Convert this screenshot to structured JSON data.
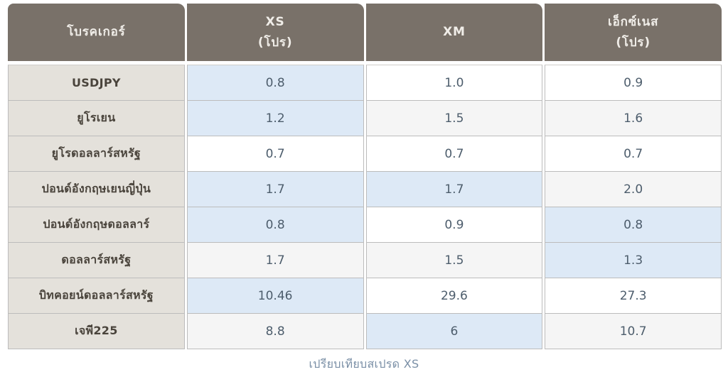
{
  "table": {
    "headers": [
      {
        "lines": [
          "โบรคเกอร์"
        ]
      },
      {
        "lines": [
          "XS",
          "(โปร)"
        ]
      },
      {
        "lines": [
          "XM"
        ]
      },
      {
        "lines": [
          "เอ็กซ์เนส",
          "(โปร)"
        ]
      }
    ],
    "rows": [
      {
        "label": "USDJPY",
        "values": [
          "0.8",
          "1.0",
          "0.9"
        ],
        "cell_bg": [
          "blue",
          "white",
          "white"
        ]
      },
      {
        "label": "ยูโรเยน",
        "values": [
          "1.2",
          "1.5",
          "1.6"
        ],
        "cell_bg": [
          "blue",
          "stripe",
          "stripe"
        ]
      },
      {
        "label": "ยูโรดอลลาร์สหรัฐ",
        "values": [
          "0.7",
          "0.7",
          "0.7"
        ],
        "cell_bg": [
          "white",
          "white",
          "white"
        ]
      },
      {
        "label": "ปอนด์อังกฤษเยนญี่ปุ่น",
        "values": [
          "1.7",
          "1.7",
          "2.0"
        ],
        "cell_bg": [
          "blue",
          "blue",
          "stripe"
        ]
      },
      {
        "label": "ปอนด์อังกฤษดอลลาร์",
        "values": [
          "0.8",
          "0.9",
          "0.8"
        ],
        "cell_bg": [
          "blue",
          "white",
          "blue"
        ]
      },
      {
        "label": "ดอลลาร์สหรัฐ",
        "values": [
          "1.7",
          "1.5",
          "1.3"
        ],
        "cell_bg": [
          "stripe",
          "stripe",
          "blue"
        ]
      },
      {
        "label": "บิทคอยน์ดอลลาร์สหรัฐ",
        "values": [
          "10.46",
          "29.6",
          "27.3"
        ],
        "cell_bg": [
          "blue",
          "white",
          "white"
        ]
      },
      {
        "label": "เจพี225",
        "values": [
          "8.8",
          "6",
          "10.7"
        ],
        "cell_bg": [
          "stripe",
          "blue",
          "stripe"
        ]
      }
    ],
    "caption": "เปรียบเทียบสเปรด XS"
  },
  "colors": {
    "page_bg": "#ffffff",
    "header_bg": "#797169",
    "header_text": "#f0ede8",
    "broker_col_bg": "#e4e1db",
    "broker_text": "#4a443c",
    "value_text": "#4d5d6c",
    "highlight_blue": "#dde9f6",
    "stripe_gray": "#f5f5f5",
    "border": "#bcbcbc",
    "caption_text": "#7a8fa6"
  },
  "chart_data": {
    "type": "table",
    "title": "เปรียบเทียบสเปรด XS",
    "columns": [
      "โบรคเกอร์",
      "XS (โปร)",
      "XM",
      "เอ็กซ์เนส (โปร)"
    ],
    "rows": [
      [
        "USDJPY",
        0.8,
        1.0,
        0.9
      ],
      [
        "ยูโรเยน",
        1.2,
        1.5,
        1.6
      ],
      [
        "ยูโรดอลลาร์สหรัฐ",
        0.7,
        0.7,
        0.7
      ],
      [
        "ปอนด์อังกฤษเยนญี่ปุ่น",
        1.7,
        1.7,
        2.0
      ],
      [
        "ปอนด์อังกฤษดอลลาร์",
        0.8,
        0.9,
        0.8
      ],
      [
        "ดอลลาร์สหรัฐ",
        1.7,
        1.5,
        1.3
      ],
      [
        "บิทคอยน์ดอลลาร์สหรัฐ",
        10.46,
        29.6,
        27.3
      ],
      [
        "เจพี225",
        8.8,
        6,
        10.7
      ]
    ],
    "highlight_note": "light-blue cell background marks the lowest spread in each row",
    "legend_position": "none",
    "grid": true
  }
}
